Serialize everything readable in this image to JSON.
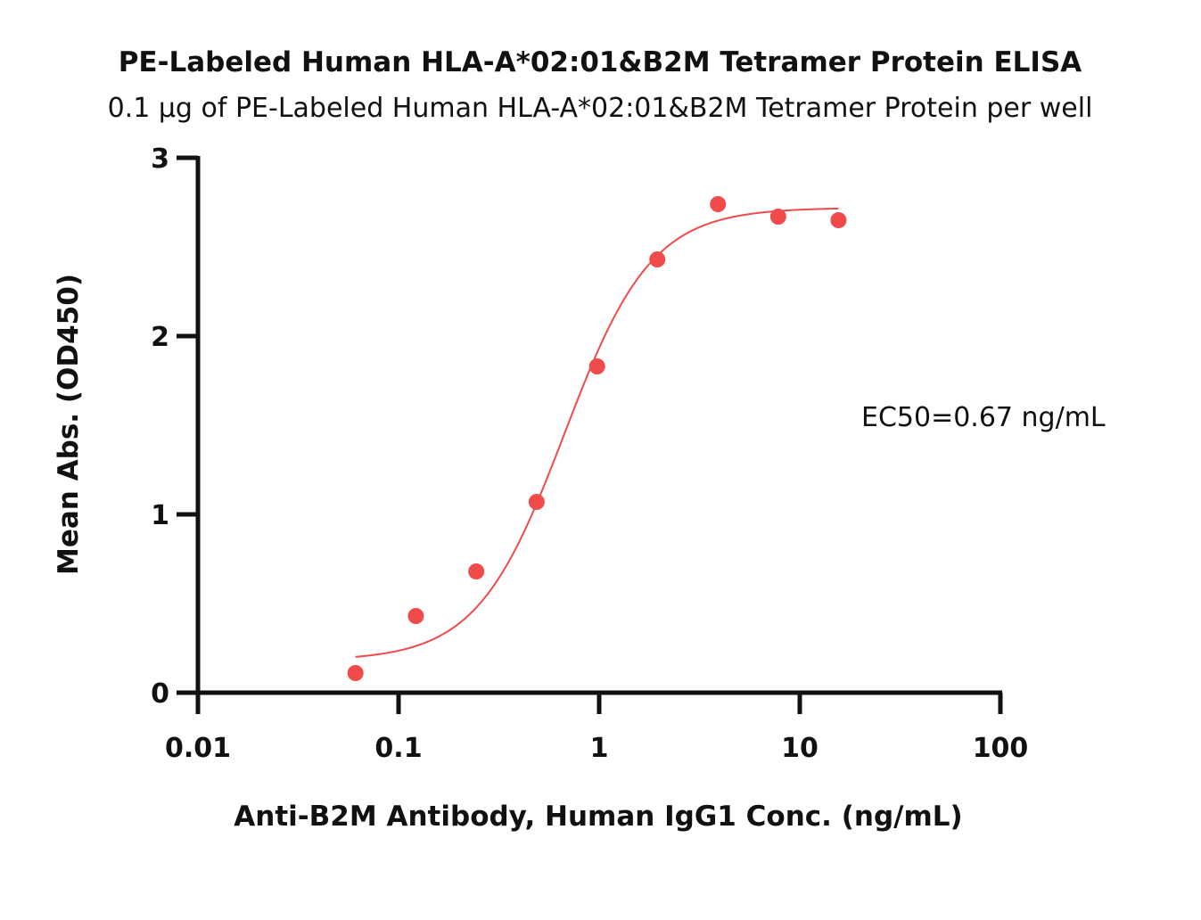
{
  "chart_data": {
    "type": "scatter",
    "title": "PE-Labeled Human HLA-A*02:01&B2M Tetramer Protein ELISA",
    "subtitle": "0.1 µg of PE-Labeled Human HLA-A*02:01&B2M Tetramer Protein per well",
    "xlabel": "Anti-B2M Antibody, Human IgG1 Conc. (ng/mL)",
    "ylabel": "Mean Abs. (OD450)",
    "x_scale": "log",
    "xlim": [
      0.01,
      100
    ],
    "ylim": [
      0,
      3
    ],
    "x_ticks": [
      {
        "value": 0.01,
        "label": "0.01"
      },
      {
        "value": 0.1,
        "label": "0.1"
      },
      {
        "value": 1,
        "label": "1"
      },
      {
        "value": 10,
        "label": "10"
      },
      {
        "value": 100,
        "label": "100"
      }
    ],
    "y_ticks": [
      {
        "value": 0,
        "label": "0"
      },
      {
        "value": 1,
        "label": "1"
      },
      {
        "value": 2,
        "label": "2"
      },
      {
        "value": 3,
        "label": "3"
      }
    ],
    "grid": false,
    "legend": "none",
    "series": [
      {
        "color": "#f04a4a",
        "points": [
          {
            "x": 0.061,
            "y": 0.11
          },
          {
            "x": 0.122,
            "y": 0.43
          },
          {
            "x": 0.244,
            "y": 0.68
          },
          {
            "x": 0.488,
            "y": 1.07
          },
          {
            "x": 0.977,
            "y": 1.83
          },
          {
            "x": 1.95,
            "y": 2.43
          },
          {
            "x": 3.91,
            "y": 2.74
          },
          {
            "x": 7.81,
            "y": 2.67
          },
          {
            "x": 15.6,
            "y": 2.65
          }
        ],
        "fit": {
          "model": "4PL",
          "bottom": 0.18,
          "top": 2.72,
          "ec50": 0.67,
          "hill": 2.0,
          "x_range": [
            0.061,
            15.6
          ]
        }
      }
    ],
    "annotations": [
      {
        "text": "EC50=0.67 ng/mL"
      }
    ]
  }
}
